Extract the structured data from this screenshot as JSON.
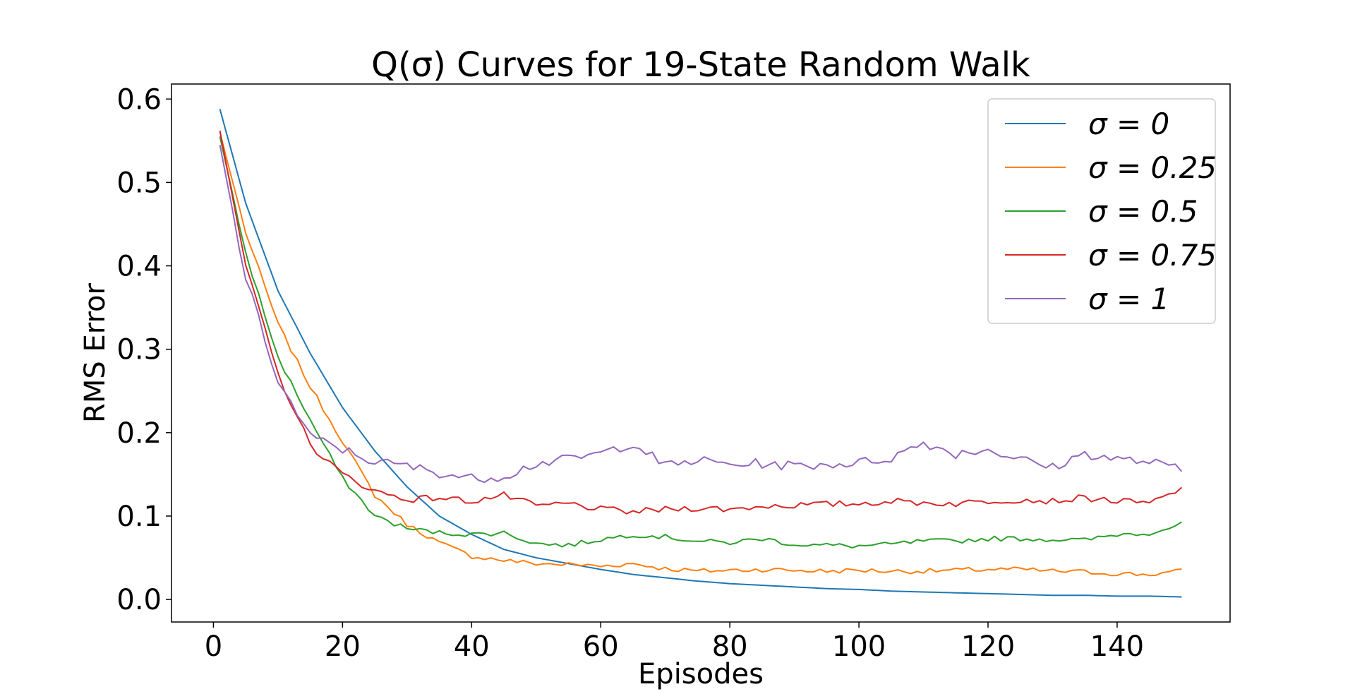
{
  "chart_data": {
    "type": "line",
    "title": "Q(σ) Curves for 19-State Random Walk",
    "xlabel": "Episodes",
    "ylabel": "RMS Error",
    "xlim": [
      -6.5,
      157.5
    ],
    "ylim": [
      -0.027,
      0.618
    ],
    "xticks": [
      0,
      20,
      40,
      60,
      80,
      100,
      120,
      140
    ],
    "yticks": [
      0.0,
      0.1,
      0.2,
      0.3,
      0.4,
      0.5,
      0.6
    ],
    "xtick_labels": [
      "0",
      "20",
      "40",
      "60",
      "80",
      "100",
      "120",
      "140"
    ],
    "ytick_labels": [
      "0.0",
      "0.1",
      "0.2",
      "0.3",
      "0.4",
      "0.5",
      "0.6"
    ],
    "grid": false,
    "legend_position": "top-right",
    "anchors": {
      "x": [
        1,
        5,
        10,
        15,
        20,
        25,
        30,
        35,
        40,
        45,
        50,
        55,
        60,
        65,
        70,
        75,
        80,
        85,
        90,
        95,
        100,
        105,
        110,
        115,
        120,
        125,
        130,
        135,
        140,
        145,
        150
      ],
      "series": [
        {
          "name": "σ = 0",
          "color": "#1f77b4",
          "values": [
            0.588,
            0.475,
            0.37,
            0.295,
            0.23,
            0.178,
            0.135,
            0.1,
            0.078,
            0.06,
            0.05,
            0.043,
            0.036,
            0.03,
            0.026,
            0.022,
            0.019,
            0.017,
            0.015,
            0.013,
            0.012,
            0.01,
            0.009,
            0.008,
            0.007,
            0.006,
            0.005,
            0.005,
            0.004,
            0.004,
            0.003
          ]
        },
        {
          "name": "σ = 0.25",
          "color": "#ff7f0e",
          "values": [
            0.56,
            0.44,
            0.33,
            0.255,
            0.19,
            0.125,
            0.09,
            0.068,
            0.052,
            0.047,
            0.043,
            0.042,
            0.04,
            0.043,
            0.037,
            0.034,
            0.035,
            0.036,
            0.035,
            0.034,
            0.035,
            0.034,
            0.034,
            0.035,
            0.036,
            0.036,
            0.034,
            0.033,
            0.031,
            0.03,
            0.034
          ]
        },
        {
          "name": "σ = 0.5",
          "color": "#2ca02c",
          "values": [
            0.555,
            0.415,
            0.29,
            0.215,
            0.145,
            0.1,
            0.085,
            0.08,
            0.078,
            0.08,
            0.067,
            0.065,
            0.072,
            0.078,
            0.075,
            0.07,
            0.068,
            0.073,
            0.066,
            0.065,
            0.064,
            0.066,
            0.07,
            0.07,
            0.073,
            0.073,
            0.072,
            0.071,
            0.078,
            0.08,
            0.09
          ]
        },
        {
          "name": "σ = 0.75",
          "color": "#d62728",
          "values": [
            0.562,
            0.4,
            0.27,
            0.185,
            0.15,
            0.13,
            0.12,
            0.122,
            0.118,
            0.125,
            0.112,
            0.115,
            0.108,
            0.105,
            0.108,
            0.11,
            0.108,
            0.112,
            0.113,
            0.114,
            0.115,
            0.118,
            0.116,
            0.115,
            0.118,
            0.12,
            0.118,
            0.122,
            0.118,
            0.115,
            0.132
          ]
        },
        {
          "name": "σ = 1",
          "color": "#9467bd",
          "values": [
            0.545,
            0.385,
            0.262,
            0.195,
            0.18,
            0.165,
            0.16,
            0.152,
            0.145,
            0.148,
            0.163,
            0.168,
            0.175,
            0.188,
            0.16,
            0.167,
            0.162,
            0.163,
            0.16,
            0.162,
            0.164,
            0.17,
            0.188,
            0.175,
            0.18,
            0.168,
            0.158,
            0.175,
            0.168,
            0.165,
            0.155
          ]
        }
      ]
    },
    "noise_amplitude": [
      0.0,
      0.003,
      0.003,
      0.004,
      0.006
    ]
  }
}
